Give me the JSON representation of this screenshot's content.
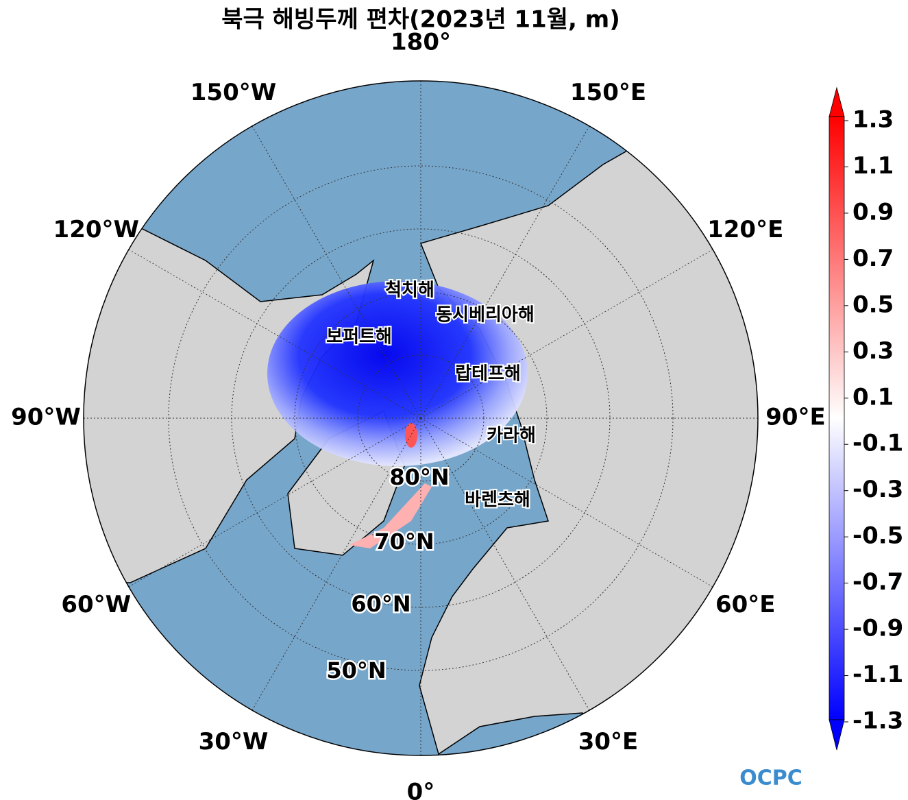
{
  "title": "북극 해빙두께 편차(2023년 11월, m)",
  "longitude_labels": [
    "180°",
    "150°E",
    "120°E",
    "90°E",
    "60°E",
    "30°E",
    "0°",
    "30°W",
    "60°W",
    "90°W",
    "120°W",
    "150°W"
  ],
  "latitude_labels": [
    "80°N",
    "70°N",
    "60°N",
    "50°N"
  ],
  "sea_names": [
    "척치해",
    "동시베리아해",
    "보퍼트해",
    "랍테프해",
    "카라해",
    "바렌츠해"
  ],
  "colorbar": {
    "lim": [
      -1.3,
      1.3
    ],
    "ticks": [
      1.3,
      1.1,
      0.9,
      0.7,
      0.5,
      0.3,
      0.1,
      -0.1,
      -0.3,
      -0.5,
      -0.7,
      -0.9,
      -1.1,
      -1.3
    ]
  },
  "logo": "OCPC"
}
